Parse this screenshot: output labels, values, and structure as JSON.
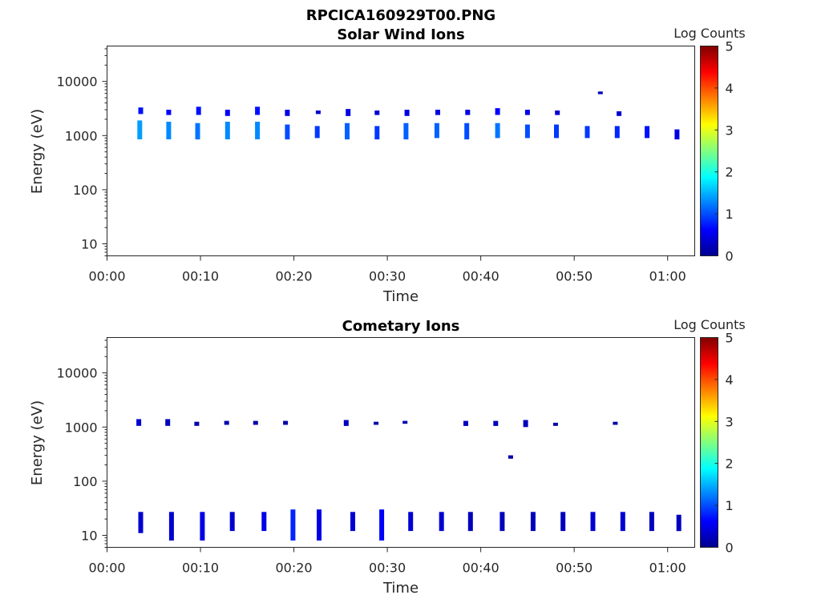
{
  "figure": {
    "title": "RPCICA160929T00.PNG"
  },
  "chart_data": [
    {
      "type": "heatmap",
      "title": "Solar Wind Ions",
      "xlabel": "Time",
      "ylabel": "Energy (eV)",
      "x_ticks": [
        "00:00",
        "00:10",
        "00:20",
        "00:30",
        "00:40",
        "00:50",
        "01:00"
      ],
      "y_ticks": [
        "10",
        "100",
        "1000",
        "10000"
      ],
      "y_scale": "log",
      "xlim_minutes": [
        0,
        62.9
      ],
      "ylim": [
        6,
        45000
      ],
      "colorbar": {
        "label": "Log Counts",
        "ticks": [
          "0",
          "1",
          "2",
          "3",
          "4",
          "5"
        ],
        "range": [
          0,
          5
        ],
        "colormap": "jet"
      },
      "cells": [
        {
          "t": 3.5,
          "e_lo": 850,
          "e_hi": 1900,
          "level": 1.4
        },
        {
          "t": 3.6,
          "e_lo": 2500,
          "e_hi": 3300,
          "level": 0.7
        },
        {
          "t": 6.6,
          "e_lo": 850,
          "e_hi": 1800,
          "level": 1.3
        },
        {
          "t": 6.6,
          "e_lo": 2400,
          "e_hi": 3000,
          "level": 0.6
        },
        {
          "t": 9.7,
          "e_lo": 850,
          "e_hi": 1700,
          "level": 1.2
        },
        {
          "t": 9.8,
          "e_lo": 2400,
          "e_hi": 3400,
          "level": 0.7
        },
        {
          "t": 12.9,
          "e_lo": 850,
          "e_hi": 1800,
          "level": 1.3
        },
        {
          "t": 12.9,
          "e_lo": 2300,
          "e_hi": 3000,
          "level": 0.6
        },
        {
          "t": 16.1,
          "e_lo": 850,
          "e_hi": 1800,
          "level": 1.3
        },
        {
          "t": 16.1,
          "e_lo": 2400,
          "e_hi": 3400,
          "level": 0.7
        },
        {
          "t": 19.3,
          "e_lo": 850,
          "e_hi": 1600,
          "level": 1.0
        },
        {
          "t": 19.3,
          "e_lo": 2300,
          "e_hi": 3000,
          "level": 0.5
        },
        {
          "t": 22.5,
          "e_lo": 900,
          "e_hi": 1500,
          "level": 0.9
        },
        {
          "t": 22.6,
          "e_lo": 2500,
          "e_hi": 2900,
          "level": 0.4
        },
        {
          "t": 25.7,
          "e_lo": 850,
          "e_hi": 1700,
          "level": 1.1
        },
        {
          "t": 25.8,
          "e_lo": 2300,
          "e_hi": 3100,
          "level": 0.5
        },
        {
          "t": 28.9,
          "e_lo": 850,
          "e_hi": 1500,
          "level": 0.9
        },
        {
          "t": 28.9,
          "e_lo": 2400,
          "e_hi": 2900,
          "level": 0.4
        },
        {
          "t": 32.0,
          "e_lo": 850,
          "e_hi": 1700,
          "level": 1.1
        },
        {
          "t": 32.1,
          "e_lo": 2300,
          "e_hi": 3000,
          "level": 0.5
        },
        {
          "t": 35.3,
          "e_lo": 900,
          "e_hi": 1700,
          "level": 1.1
        },
        {
          "t": 35.4,
          "e_lo": 2400,
          "e_hi": 3000,
          "level": 0.5
        },
        {
          "t": 38.5,
          "e_lo": 850,
          "e_hi": 1700,
          "level": 1.0
        },
        {
          "t": 38.6,
          "e_lo": 2400,
          "e_hi": 3000,
          "level": 0.5
        },
        {
          "t": 41.8,
          "e_lo": 900,
          "e_hi": 1700,
          "level": 1.2
        },
        {
          "t": 41.8,
          "e_lo": 2400,
          "e_hi": 3200,
          "level": 0.6
        },
        {
          "t": 45.0,
          "e_lo": 900,
          "e_hi": 1600,
          "level": 1.0
        },
        {
          "t": 45.0,
          "e_lo": 2400,
          "e_hi": 3000,
          "level": 0.5
        },
        {
          "t": 48.1,
          "e_lo": 900,
          "e_hi": 1600,
          "level": 0.9
        },
        {
          "t": 48.2,
          "e_lo": 2400,
          "e_hi": 2900,
          "level": 0.4
        },
        {
          "t": 51.4,
          "e_lo": 900,
          "e_hi": 1500,
          "level": 0.9
        },
        {
          "t": 52.8,
          "e_lo": 5800,
          "e_hi": 6500,
          "level": 0.3
        },
        {
          "t": 54.6,
          "e_lo": 900,
          "e_hi": 1500,
          "level": 0.8
        },
        {
          "t": 54.8,
          "e_lo": 2300,
          "e_hi": 2800,
          "level": 0.4
        },
        {
          "t": 57.8,
          "e_lo": 900,
          "e_hi": 1500,
          "level": 0.7
        },
        {
          "t": 61.0,
          "e_lo": 850,
          "e_hi": 1300,
          "level": 0.5
        }
      ]
    },
    {
      "type": "heatmap",
      "title": "Cometary Ions",
      "xlabel": "Time",
      "ylabel": "Energy (eV)",
      "x_ticks": [
        "00:00",
        "00:10",
        "00:20",
        "00:30",
        "00:40",
        "00:50",
        "01:00"
      ],
      "y_ticks": [
        "10",
        "100",
        "1000",
        "10000"
      ],
      "y_scale": "log",
      "xlim_minutes": [
        0,
        62.9
      ],
      "ylim": [
        6,
        45000
      ],
      "colorbar": {
        "label": "Log Counts",
        "ticks": [
          "0",
          "1",
          "2",
          "3",
          "4",
          "5"
        ],
        "range": [
          0,
          5
        ],
        "colormap": "jet"
      },
      "cells": [
        {
          "t": 3.4,
          "e_lo": 1050,
          "e_hi": 1400,
          "level": 0.4
        },
        {
          "t": 6.5,
          "e_lo": 1050,
          "e_hi": 1400,
          "level": 0.3
        },
        {
          "t": 9.6,
          "e_lo": 1050,
          "e_hi": 1250,
          "level": 0.2
        },
        {
          "t": 12.8,
          "e_lo": 1100,
          "e_hi": 1300,
          "level": 0.2
        },
        {
          "t": 15.9,
          "e_lo": 1100,
          "e_hi": 1300,
          "level": 0.2
        },
        {
          "t": 19.1,
          "e_lo": 1100,
          "e_hi": 1300,
          "level": 0.2
        },
        {
          "t": 25.6,
          "e_lo": 1050,
          "e_hi": 1350,
          "level": 0.3
        },
        {
          "t": 28.8,
          "e_lo": 1100,
          "e_hi": 1250,
          "level": 0.2
        },
        {
          "t": 31.9,
          "e_lo": 1150,
          "e_hi": 1300,
          "level": 0.2
        },
        {
          "t": 38.4,
          "e_lo": 1050,
          "e_hi": 1300,
          "level": 0.3
        },
        {
          "t": 41.6,
          "e_lo": 1050,
          "e_hi": 1300,
          "level": 0.3
        },
        {
          "t": 44.8,
          "e_lo": 1000,
          "e_hi": 1350,
          "level": 0.3
        },
        {
          "t": 48.0,
          "e_lo": 1050,
          "e_hi": 1200,
          "level": 0.2
        },
        {
          "t": 54.4,
          "e_lo": 1100,
          "e_hi": 1250,
          "level": 0.2
        },
        {
          "t": 43.2,
          "e_lo": 260,
          "e_hi": 300,
          "level": 0.2
        },
        {
          "t": 3.6,
          "e_lo": 11,
          "e_hi": 27,
          "level": 0.4
        },
        {
          "t": 6.9,
          "e_lo": 8,
          "e_hi": 27,
          "level": 0.4
        },
        {
          "t": 10.2,
          "e_lo": 8,
          "e_hi": 27,
          "level": 0.5
        },
        {
          "t": 13.4,
          "e_lo": 12,
          "e_hi": 27,
          "level": 0.4
        },
        {
          "t": 16.8,
          "e_lo": 12,
          "e_hi": 27,
          "level": 0.5
        },
        {
          "t": 19.9,
          "e_lo": 8,
          "e_hi": 30,
          "level": 0.8
        },
        {
          "t": 22.7,
          "e_lo": 8,
          "e_hi": 30,
          "level": 0.5
        },
        {
          "t": 26.3,
          "e_lo": 12,
          "e_hi": 27,
          "level": 0.4
        },
        {
          "t": 29.4,
          "e_lo": 8,
          "e_hi": 30,
          "level": 0.6
        },
        {
          "t": 32.5,
          "e_lo": 12,
          "e_hi": 27,
          "level": 0.4
        },
        {
          "t": 35.8,
          "e_lo": 12,
          "e_hi": 27,
          "level": 0.4
        },
        {
          "t": 38.9,
          "e_lo": 12,
          "e_hi": 27,
          "level": 0.3
        },
        {
          "t": 42.3,
          "e_lo": 12,
          "e_hi": 27,
          "level": 0.3
        },
        {
          "t": 45.6,
          "e_lo": 12,
          "e_hi": 27,
          "level": 0.3
        },
        {
          "t": 48.8,
          "e_lo": 12,
          "e_hi": 27,
          "level": 0.3
        },
        {
          "t": 52.0,
          "e_lo": 12,
          "e_hi": 27,
          "level": 0.4
        },
        {
          "t": 55.2,
          "e_lo": 12,
          "e_hi": 27,
          "level": 0.4
        },
        {
          "t": 58.3,
          "e_lo": 12,
          "e_hi": 27,
          "level": 0.3
        },
        {
          "t": 61.2,
          "e_lo": 12,
          "e_hi": 24,
          "level": 0.3
        }
      ]
    }
  ]
}
